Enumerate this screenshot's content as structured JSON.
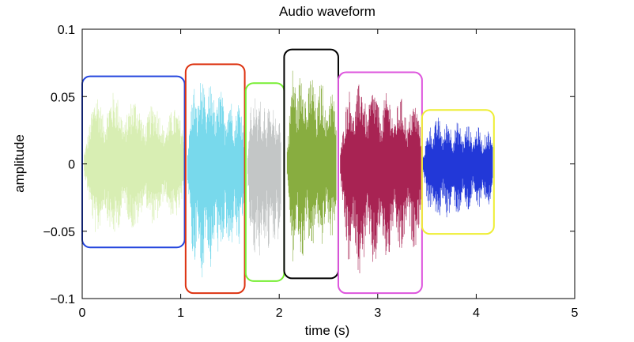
{
  "chart_data": {
    "type": "line",
    "title": "Audio waveform",
    "xlabel": "time (s)",
    "ylabel": "amplitude",
    "xlim": [
      0,
      5
    ],
    "ylim": [
      -0.1,
      0.1
    ],
    "xticks": [
      "0",
      "1",
      "2",
      "3",
      "4",
      "5"
    ],
    "yticks": [
      "0.1",
      "0.05",
      "0",
      "−0.05",
      "−0.1"
    ],
    "grid": false,
    "segments": [
      {
        "t_start": 0.02,
        "t_end": 1.04,
        "color": "#d8eeb3",
        "peak_pos": 0.06,
        "peak_neg": -0.06,
        "box": {
          "x": [
            0.0,
            1.04
          ],
          "y": [
            -0.062,
            0.065
          ],
          "color": "#2244dd"
        }
      },
      {
        "t_start": 1.07,
        "t_end": 1.64,
        "color": "#78d9ec",
        "peak_pos": 0.071,
        "peak_neg": -0.094,
        "box": {
          "x": [
            1.05,
            1.65
          ],
          "y": [
            -0.096,
            0.074
          ],
          "color": "#dd3311"
        }
      },
      {
        "t_start": 1.68,
        "t_end": 2.02,
        "color": "#c3c6c6",
        "peak_pos": 0.058,
        "peak_neg": -0.087,
        "box": {
          "x": [
            1.66,
            2.05
          ],
          "y": [
            -0.087,
            0.06
          ],
          "color": "#77ee33"
        }
      },
      {
        "t_start": 2.08,
        "t_end": 2.58,
        "color": "#88ad40",
        "peak_pos": 0.082,
        "peak_neg": -0.082,
        "box": {
          "x": [
            2.05,
            2.6
          ],
          "y": [
            -0.085,
            0.085
          ],
          "color": "#000000"
        }
      },
      {
        "t_start": 2.62,
        "t_end": 3.44,
        "color": "#a82353",
        "peak_pos": 0.067,
        "peak_neg": -0.092,
        "box": {
          "x": [
            2.6,
            3.45
          ],
          "y": [
            -0.096,
            0.068
          ],
          "color": "#dd55dd"
        }
      },
      {
        "t_start": 3.46,
        "t_end": 4.17,
        "color": "#2238d8",
        "peak_pos": 0.038,
        "peak_neg": -0.047,
        "box": {
          "x": [
            3.45,
            4.18
          ],
          "y": [
            -0.052,
            0.04
          ],
          "color": "#eeee33"
        }
      }
    ]
  }
}
